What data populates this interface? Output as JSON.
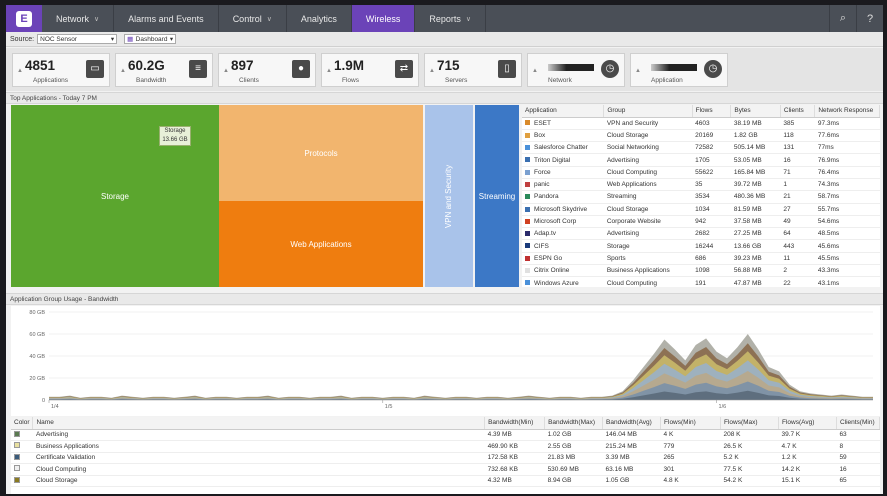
{
  "nav": {
    "items": [
      {
        "label": "Network",
        "chevron": true,
        "active": false
      },
      {
        "label": "Alarms and Events",
        "chevron": false,
        "active": false
      },
      {
        "label": "Control",
        "chevron": true,
        "active": false
      },
      {
        "label": "Analytics",
        "chevron": false,
        "active": false
      },
      {
        "label": "Wireless",
        "chevron": false,
        "active": true
      },
      {
        "label": "Reports",
        "chevron": true,
        "active": false
      }
    ],
    "tools": [
      "search-icon",
      "help-icon"
    ]
  },
  "source": {
    "label": "Source:",
    "value": "NOC Sensor",
    "view": "Dashboard"
  },
  "kpis": [
    {
      "value": "4851",
      "label": "Applications",
      "icon": "window-icon",
      "glyph": "▭"
    },
    {
      "value": "60.2G",
      "label": "Bandwidth",
      "icon": "sliders-icon",
      "glyph": "≡"
    },
    {
      "value": "897",
      "label": "Clients",
      "icon": "user-icon",
      "glyph": "●"
    },
    {
      "value": "1.9M",
      "label": "Flows",
      "icon": "flows-icon",
      "glyph": "⇄"
    },
    {
      "value": "715",
      "label": "Servers",
      "icon": "server-icon",
      "glyph": "▯"
    },
    {
      "value": "",
      "label": "Network",
      "icon": "timer-icon",
      "glyph": "◷"
    },
    {
      "value": "",
      "label": "Application",
      "icon": "timer-icon",
      "glyph": "◷"
    }
  ],
  "top_apps": {
    "title": "Top Applications - Today 7 PM",
    "treemap": [
      {
        "label": "Storage",
        "color": "#5ba62e"
      },
      {
        "label": "Protocols",
        "color": "#f2b56e"
      },
      {
        "label": "Web Applications",
        "color": "#ef7d0f"
      },
      {
        "label": "VPN and Security",
        "color": "#a9c3ea"
      },
      {
        "label": "Streaming",
        "color": "#3c78c6"
      }
    ],
    "tooltip": {
      "name": "Storage",
      "value": "13.66 GB"
    },
    "columns": [
      "Application",
      "Group",
      "Flows",
      "Bytes",
      "Clients",
      "Network Response"
    ],
    "rows": [
      {
        "icon": "#d98a2a",
        "app": "ESET",
        "group": "VPN and Security",
        "flows": "4603",
        "bytes": "38.19 MB",
        "clients": "385",
        "resp": "97.3ms"
      },
      {
        "icon": "#e0a040",
        "app": "Box",
        "group": "Cloud Storage",
        "flows": "20169",
        "bytes": "1.82 GB",
        "clients": "118",
        "resp": "77.6ms"
      },
      {
        "icon": "#4a90d9",
        "app": "Salesforce Chatter",
        "group": "Social Networking",
        "flows": "72582",
        "bytes": "505.14 MB",
        "clients": "131",
        "resp": "77ms"
      },
      {
        "icon": "#3a6fb0",
        "app": "Triton Digital",
        "group": "Advertising",
        "flows": "1705",
        "bytes": "53.05 MB",
        "clients": "16",
        "resp": "76.9ms"
      },
      {
        "icon": "#7aa0d0",
        "app": "Force",
        "group": "Cloud Computing",
        "flows": "55622",
        "bytes": "165.84 MB",
        "clients": "71",
        "resp": "76.4ms"
      },
      {
        "icon": "#c04040",
        "app": "panic",
        "group": "Web Applications",
        "flows": "35",
        "bytes": "39.72 MB",
        "clients": "1",
        "resp": "74.3ms"
      },
      {
        "icon": "#2a8a5a",
        "app": "Pandora",
        "group": "Streaming",
        "flows": "3534",
        "bytes": "480.36 MB",
        "clients": "21",
        "resp": "58.7ms"
      },
      {
        "icon": "#3a6fb0",
        "app": "Microsoft Skydrive",
        "group": "Cloud Storage",
        "flows": "1034",
        "bytes": "81.59 MB",
        "clients": "27",
        "resp": "55.7ms"
      },
      {
        "icon": "#d04020",
        "app": "Microsoft Corp",
        "group": "Corporate Website",
        "flows": "942",
        "bytes": "37.58 MB",
        "clients": "49",
        "resp": "54.6ms"
      },
      {
        "icon": "#2a2a6a",
        "app": "Adap.tv",
        "group": "Advertising",
        "flows": "2682",
        "bytes": "27.25 MB",
        "clients": "64",
        "resp": "48.5ms"
      },
      {
        "icon": "#1a3a7a",
        "app": "CIFS",
        "group": "Storage",
        "flows": "16244",
        "bytes": "13.66 GB",
        "clients": "443",
        "resp": "45.6ms"
      },
      {
        "icon": "#c03030",
        "app": "ESPN Go",
        "group": "Sports",
        "flows": "686",
        "bytes": "39.23 MB",
        "clients": "11",
        "resp": "45.5ms"
      },
      {
        "icon": "#e0e0e0",
        "app": "Citrix Online",
        "group": "Business Applications",
        "flows": "1098",
        "bytes": "56.88 MB",
        "clients": "2",
        "resp": "43.3ms"
      },
      {
        "icon": "#4a90d9",
        "app": "Windows Azure",
        "group": "Cloud Computing",
        "flows": "191",
        "bytes": "47.87 MB",
        "clients": "22",
        "resp": "43.1ms"
      }
    ]
  },
  "usage": {
    "title": "Application Group Usage - Bandwidth",
    "yticks": [
      "80 GB",
      "60 GB",
      "40 GB",
      "20 GB",
      "0"
    ],
    "xticks": [
      "1/4",
      "1/5",
      "1/6"
    ]
  },
  "chart_data": {
    "type": "area",
    "title": "Application Group Usage - Bandwidth",
    "ylim": [
      0,
      80
    ],
    "yunit": "GB",
    "x": [
      0,
      1,
      2,
      3,
      4,
      5,
      6,
      7,
      8,
      9,
      10,
      11,
      12,
      13,
      14,
      15,
      16,
      17,
      18,
      19,
      20,
      21,
      22,
      23,
      24,
      25,
      26,
      27,
      28,
      29,
      30,
      31,
      32,
      33,
      34,
      35,
      36,
      37,
      38,
      39,
      40,
      41,
      42,
      43,
      44,
      45,
      46,
      47,
      48,
      49,
      50,
      51,
      52,
      53,
      54,
      55,
      56,
      57,
      58,
      59,
      60,
      61,
      62,
      63,
      64,
      65,
      66,
      67,
      68,
      69,
      70,
      71,
      72,
      73,
      74,
      75,
      76,
      77,
      78,
      79
    ],
    "total": [
      3,
      3,
      4,
      2,
      3,
      3,
      2,
      4,
      3,
      2,
      3,
      3,
      2,
      3,
      4,
      2,
      3,
      3,
      2,
      3,
      3,
      4,
      2,
      3,
      3,
      2,
      3,
      3,
      4,
      2,
      3,
      3,
      2,
      3,
      3,
      2,
      4,
      3,
      2,
      3,
      3,
      2,
      3,
      3,
      2,
      3,
      4,
      3,
      2,
      3,
      3,
      2,
      3,
      3,
      4,
      8,
      18,
      30,
      42,
      55,
      46,
      36,
      50,
      56,
      44,
      38,
      48,
      60,
      46,
      30,
      26,
      14,
      8,
      6,
      5,
      4,
      5,
      4,
      3,
      3
    ],
    "series": []
  },
  "groups": {
    "columns": [
      "Color",
      "Name",
      "Bandwidth(Min)",
      "Bandwidth(Max)",
      "Bandwidth(Avg)",
      "Flows(Min)",
      "Flows(Max)",
      "Flows(Avg)",
      "Clients(Min)"
    ],
    "rows": [
      {
        "color": "#5a7a50",
        "name": "Advertising",
        "bmin": "4.39 MB",
        "bmax": "1.02 GB",
        "bavg": "146.04 MB",
        "fmin": "4 K",
        "fmax": "208 K",
        "favg": "39.7 K",
        "cmin": "63"
      },
      {
        "color": "#e8e0a0",
        "name": "Business Applications",
        "bmin": "469.90 KB",
        "bmax": "2.55 GB",
        "bavg": "215.24 MB",
        "fmin": "779",
        "fmax": "26.5 K",
        "favg": "4.7 K",
        "cmin": "8"
      },
      {
        "color": "#3a5a7a",
        "name": "Certificate Validation",
        "bmin": "172.58 KB",
        "bmax": "21.83 MB",
        "bavg": "3.39 MB",
        "fmin": "265",
        "fmax": "5.2 K",
        "favg": "1.2 K",
        "cmin": "59"
      },
      {
        "color": "#f0f0f0",
        "name": "Cloud Computing",
        "bmin": "732.68 KB",
        "bmax": "530.69 MB",
        "bavg": "63.16 MB",
        "fmin": "301",
        "fmax": "77.5 K",
        "favg": "14.2 K",
        "cmin": "16"
      },
      {
        "color": "#8a7a20",
        "name": "Cloud Storage",
        "bmin": "4.32 MB",
        "bmax": "8.94 GB",
        "bavg": "1.05 GB",
        "fmin": "4.8 K",
        "fmax": "54.2 K",
        "favg": "15.1 K",
        "cmin": "65"
      }
    ]
  }
}
